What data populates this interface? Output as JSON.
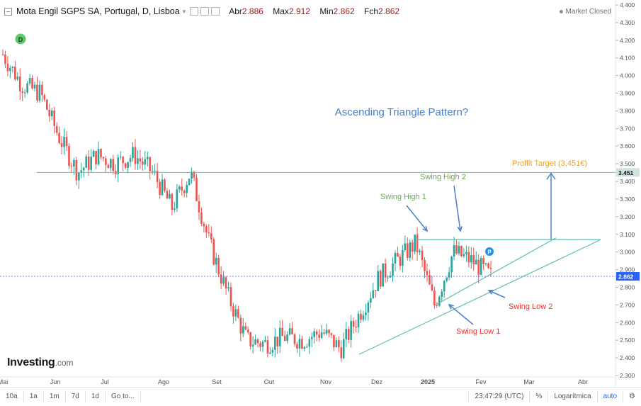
{
  "header": {
    "title": "Mota Engil SGPS SA, Portugal, D, Lisboa",
    "ohlc": [
      {
        "label": "Abr",
        "value": "2.886"
      },
      {
        "label": "Max",
        "value": "2.912"
      },
      {
        "label": "Min",
        "value": "2.862"
      },
      {
        "label": "Fch",
        "value": "2.862"
      }
    ],
    "market_status": "Market Closed"
  },
  "colors": {
    "up": "#26a69a",
    "down": "#ef5350",
    "trend": "#5fbfb0",
    "price_line": "#2962ff",
    "annotation_blue": "#4a7ec8",
    "annotation_green": "#6aa84f",
    "annotation_red": "#e53935",
    "annotation_orange": "#f0a020"
  },
  "chart_data": {
    "type": "candlestick",
    "y_axis": {
      "min": 2.3,
      "max": 4.4,
      "step": 0.1,
      "position": "right",
      "ticks": [
        "2.300",
        "2.400",
        "2.500",
        "2.600",
        "2.700",
        "2.800",
        "2.900",
        "3.000",
        "3.100",
        "3.200",
        "3.300",
        "3.400",
        "3.500",
        "3.600",
        "3.700",
        "3.800",
        "3.900",
        "4.000",
        "4.100",
        "4.200",
        "4.300",
        "4.400"
      ]
    },
    "x_axis": {
      "labels": [
        "Mai",
        "Jun",
        "Jul",
        "Ago",
        "Set",
        "Out",
        "Nov",
        "Dez",
        "2025",
        "Fev",
        "Mar",
        "Abr"
      ]
    },
    "price_labels": [
      {
        "value": 3.451,
        "text": "3.451"
      },
      {
        "value": 2.862,
        "text": "2.862"
      }
    ],
    "series_close_anchors": [
      {
        "month": "Mai",
        "close": 4.12
      },
      {
        "month": "Mai end",
        "close": 3.95
      },
      {
        "month": "Jun",
        "close": 3.9
      },
      {
        "month": "Jun mid",
        "close": 3.65
      },
      {
        "month": "Jun end",
        "close": 3.45
      },
      {
        "month": "Jul",
        "close": 3.55
      },
      {
        "month": "Jul mid",
        "close": 3.5
      },
      {
        "month": "Jul end",
        "close": 3.55
      },
      {
        "month": "Ago",
        "close": 3.45
      },
      {
        "month": "Ago mid",
        "close": 3.25
      },
      {
        "month": "Ago end",
        "close": 3.45
      },
      {
        "month": "Set",
        "close": 3.05
      },
      {
        "month": "Set early",
        "close": 2.75
      },
      {
        "month": "Set mid",
        "close": 2.5
      },
      {
        "month": "Out",
        "close": 2.48
      },
      {
        "month": "Out mid",
        "close": 2.52
      },
      {
        "month": "Nov",
        "close": 2.5
      },
      {
        "month": "Nov mid",
        "close": 2.55
      },
      {
        "month": "Nov end",
        "close": 2.45
      },
      {
        "month": "Dez",
        "close": 2.65
      },
      {
        "month": "Dez mid",
        "close": 2.85
      },
      {
        "month": "Dez end",
        "close": 2.95
      },
      {
        "month": "2025",
        "close": 3.05
      },
      {
        "month": "Jan early",
        "close": 2.7
      },
      {
        "month": "Jan mid",
        "close": 3.0
      },
      {
        "month": "Jan end",
        "close": 2.95
      },
      {
        "month": "Fev",
        "close": 2.862
      }
    ],
    "annotations": {
      "title": "Ascending Triangle Pattern?",
      "swing_high_1": "Swing High 1",
      "swing_high_2": "Swing High 2",
      "swing_low_1": "Swing Low 1",
      "swing_low_2": "Swing Low 2",
      "profit_target": "Proffit Target (3,451€)",
      "resistance": 3.07,
      "target": 3.451
    },
    "markers": {
      "d_marker": "D",
      "p_marker": "P"
    }
  },
  "footer": {
    "ranges": [
      "10a",
      "1a",
      "1m",
      "7d",
      "1d"
    ],
    "goto": "Go to...",
    "time": "23:47:29 (UTC)",
    "percent": "%",
    "log": "Logarítmica",
    "auto": "auto",
    "settings_icon": "gear-icon"
  },
  "logo": {
    "main": "Investing",
    "suffix": ".com"
  }
}
